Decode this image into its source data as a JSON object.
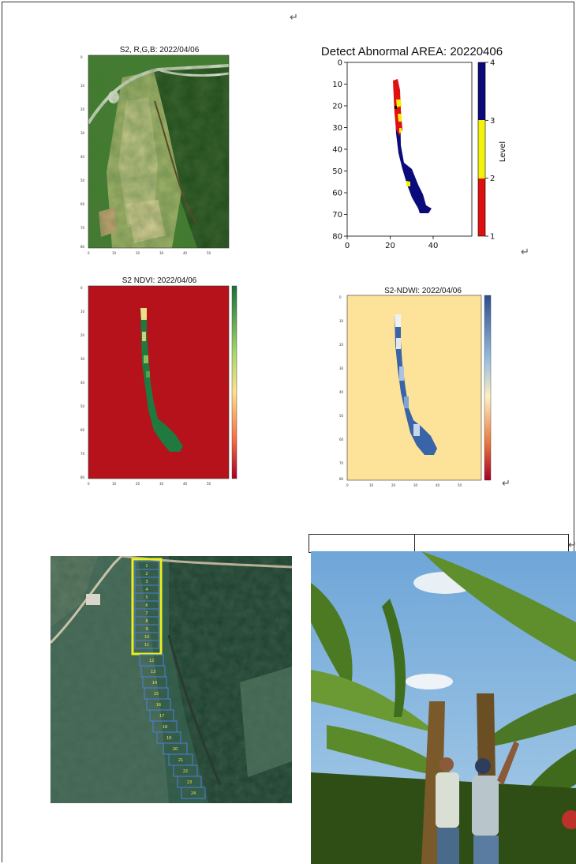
{
  "marks": {
    "paragraph": "↵"
  },
  "rgb": {
    "title": "S2, R,G,B: 2022/04/06"
  },
  "abnormal": {
    "title": "Detect Abnormal AREA: 20220406",
    "colorbar_label": "Level",
    "colorbar_ticks": [
      "1",
      "2",
      "3",
      "4"
    ],
    "x_ticks": [
      "0",
      "20",
      "40"
    ],
    "y_ticks": [
      "0",
      "10",
      "20",
      "30",
      "40",
      "50",
      "60",
      "70",
      "80"
    ]
  },
  "ndvi": {
    "title": "S2 NDVI: 2022/04/06"
  },
  "ndwi": {
    "title": "S2-NDWI: 2022/04/06"
  },
  "satellite": {
    "plot_labels": [
      "1",
      "2",
      "3",
      "4",
      "5",
      "6",
      "7",
      "8",
      "9",
      "10",
      "11",
      "12",
      "13",
      "14",
      "15",
      "16",
      "17",
      "18",
      "19",
      "20",
      "21",
      "22",
      "23",
      "24"
    ]
  },
  "colors": {
    "level1": "#e01010",
    "level3": "#f5f20a",
    "level4": "#0a0a7a",
    "ndvi_bg": "#b5121b",
    "ndvi_green": "#1e7a3e",
    "ndwi_bg": "#fde29a",
    "ndwi_blue": "#3a64a8",
    "plot_yellow": "#e8f020",
    "plot_blue": "#4a7fd6"
  }
}
